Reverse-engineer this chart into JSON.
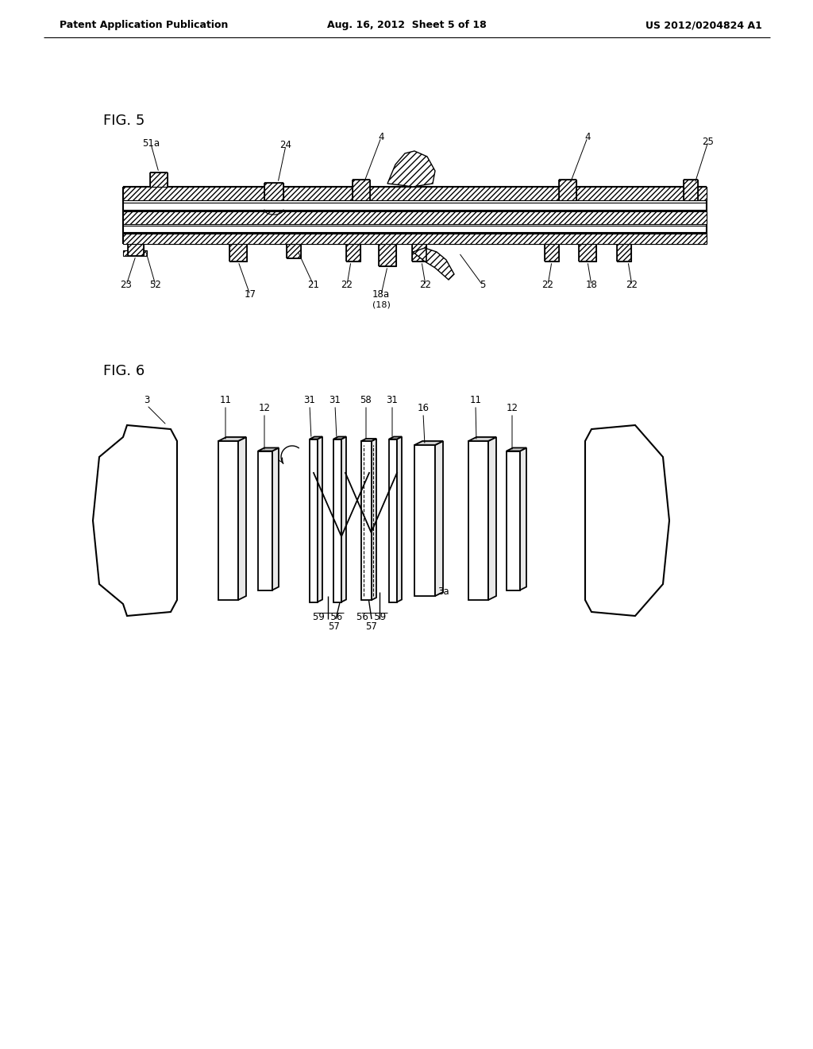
{
  "bg_color": "#ffffff",
  "text_color": "#000000",
  "header_left": "Patent Application Publication",
  "header_center": "Aug. 16, 2012  Sheet 5 of 18",
  "header_right": "US 2012/0204824 A1",
  "fig5_label": "FIG. 5",
  "fig6_label": "FIG. 6",
  "line_color": "#000000"
}
